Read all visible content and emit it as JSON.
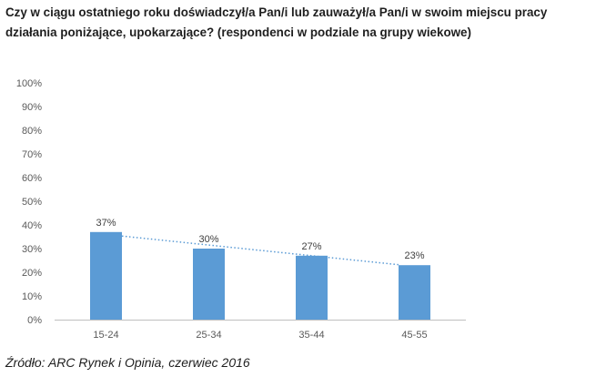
{
  "title": "Czy w ciągu ostatniego roku doświadczył/a Pan/i lub zauważył/a Pan/i w swoim miejscu pracy działania poniżające, upokarzające? (respondenci w podziale na grupy wiekowe)",
  "source": "Źródło: ARC Rynek i Opinia, czerwiec 2016",
  "colors": {
    "bar": "#5b9bd5",
    "trendline": "#5b9bd5",
    "axis_text": "#595959",
    "gridline": "#bfbfbf"
  },
  "chart_data": {
    "type": "bar",
    "title": "Czy w ciągu ostatniego roku doświadczył/a Pan/i lub zauważył/a Pan/i w swoim miejscu pracy działania poniżające, upokarzające? (respondenci w podziale na grupy wiekowe)",
    "categories": [
      "15-24",
      "25-34",
      "35-44",
      "45-55"
    ],
    "values": [
      37,
      30,
      27,
      23
    ],
    "data_labels": [
      "37%",
      "30%",
      "27%",
      "23%"
    ],
    "xlabel": "",
    "ylabel": "",
    "ylim": [
      0,
      100
    ],
    "yticks": [
      0,
      10,
      20,
      30,
      40,
      50,
      60,
      70,
      80,
      90,
      100
    ],
    "ytick_labels": [
      "0%",
      "10%",
      "20%",
      "30%",
      "40%",
      "50%",
      "60%",
      "70%",
      "80%",
      "90%",
      "100%"
    ],
    "trendline": "linear, dotted",
    "grid": false,
    "legend": "none"
  }
}
